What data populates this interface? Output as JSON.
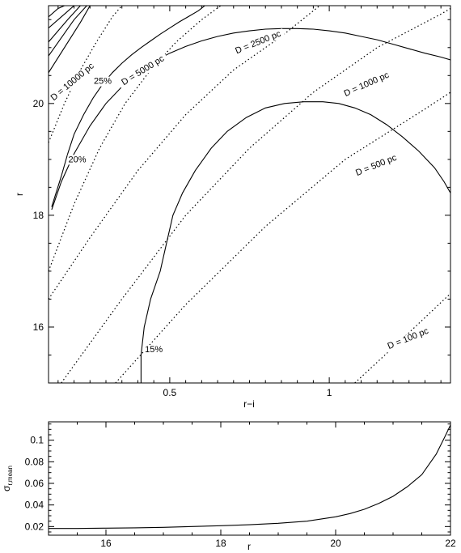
{
  "chart_data": [
    {
      "type": "line",
      "title": "",
      "xlabel": "r−i",
      "ylabel": "r",
      "xlim": [
        0.12,
        1.38
      ],
      "ylim": [
        15.0,
        21.75
      ],
      "xticks": [
        0.5,
        1.0
      ],
      "xtick_labels": [
        "0.5",
        "1"
      ],
      "yticks": [
        16,
        18,
        20
      ],
      "ytick_labels": [
        "16",
        "18",
        "20"
      ],
      "grid": false,
      "legend": "none",
      "contour_series": [
        {
          "label": "25%",
          "points": [
            [
              0.13,
              18.1
            ],
            [
              0.16,
              18.6
            ],
            [
              0.2,
              19.1
            ],
            [
              0.25,
              19.6
            ],
            [
              0.3,
              20.0
            ],
            [
              0.35,
              20.3
            ],
            [
              0.4,
              20.55
            ],
            [
              0.45,
              20.75
            ],
            [
              0.5,
              20.9
            ],
            [
              0.55,
              21.02
            ],
            [
              0.6,
              21.12
            ],
            [
              0.65,
              21.2
            ],
            [
              0.7,
              21.26
            ],
            [
              0.75,
              21.3
            ],
            [
              0.8,
              21.33
            ],
            [
              0.85,
              21.34
            ],
            [
              0.9,
              21.34
            ],
            [
              0.95,
              21.33
            ],
            [
              1.0,
              21.3
            ],
            [
              1.05,
              21.26
            ],
            [
              1.1,
              21.2
            ],
            [
              1.15,
              21.14
            ],
            [
              1.2,
              21.06
            ],
            [
              1.25,
              20.98
            ],
            [
              1.3,
              20.9
            ],
            [
              1.35,
              20.83
            ],
            [
              1.38,
              20.78
            ]
          ]
        },
        {
          "label": "20%",
          "points": [
            [
              0.13,
              18.15
            ],
            [
              0.16,
              18.7
            ],
            [
              0.18,
              19.1
            ],
            [
              0.2,
              19.45
            ],
            [
              0.23,
              19.8
            ],
            [
              0.26,
              20.1
            ],
            [
              0.29,
              20.35
            ],
            [
              0.32,
              20.55
            ],
            [
              0.35,
              20.72
            ],
            [
              0.38,
              20.87
            ],
            [
              0.41,
              21.0
            ],
            [
              0.44,
              21.12
            ],
            [
              0.47,
              21.24
            ],
            [
              0.5,
              21.35
            ],
            [
              0.53,
              21.46
            ],
            [
              0.56,
              21.56
            ],
            [
              0.59,
              21.66
            ],
            [
              0.61,
              21.75
            ]
          ]
        },
        {
          "label": "15%",
          "points": [
            [
              0.41,
              15.0
            ],
            [
              0.41,
              15.5
            ],
            [
              0.42,
              16.0
            ],
            [
              0.44,
              16.5
            ],
            [
              0.47,
              17.0
            ],
            [
              0.49,
              17.5
            ],
            [
              0.51,
              18.0
            ],
            [
              0.54,
              18.4
            ],
            [
              0.58,
              18.8
            ],
            [
              0.63,
              19.2
            ],
            [
              0.68,
              19.5
            ],
            [
              0.74,
              19.75
            ],
            [
              0.8,
              19.92
            ],
            [
              0.86,
              20.0
            ],
            [
              0.92,
              20.03
            ],
            [
              0.98,
              20.03
            ],
            [
              1.03,
              20.0
            ],
            [
              1.08,
              19.92
            ],
            [
              1.13,
              19.8
            ],
            [
              1.18,
              19.62
            ],
            [
              1.23,
              19.4
            ],
            [
              1.28,
              19.15
            ],
            [
              1.33,
              18.85
            ],
            [
              1.36,
              18.6
            ],
            [
              1.38,
              18.4
            ]
          ]
        },
        {
          "label": "",
          "points": [
            [
              0.12,
              20.55
            ],
            [
              0.22,
              21.45
            ],
            [
              0.25,
              21.75
            ]
          ]
        },
        {
          "label": "",
          "points": [
            [
              0.12,
              20.85
            ],
            [
              0.2,
              21.5
            ],
            [
              0.24,
              21.75
            ]
          ]
        },
        {
          "label": "",
          "points": [
            [
              0.12,
              21.1
            ],
            [
              0.18,
              21.5
            ],
            [
              0.22,
              21.75
            ]
          ]
        },
        {
          "label": "",
          "points": [
            [
              0.12,
              21.35
            ],
            [
              0.17,
              21.6
            ],
            [
              0.2,
              21.75
            ]
          ]
        },
        {
          "label": "",
          "points": [
            [
              0.12,
              21.55
            ],
            [
              0.15,
              21.7
            ],
            [
              0.17,
              21.75
            ]
          ]
        }
      ],
      "distance_series": [
        {
          "label": "D = 10000 pc",
          "points": [
            [
              0.12,
              19.3
            ],
            [
              0.17,
              20.0
            ],
            [
              0.22,
              20.6
            ],
            [
              0.27,
              21.1
            ],
            [
              0.32,
              21.55
            ],
            [
              0.35,
              21.75
            ]
          ]
        },
        {
          "label": "D = 5000 pc",
          "points": [
            [
              0.12,
              17.0
            ],
            [
              0.2,
              18.2
            ],
            [
              0.28,
              19.2
            ],
            [
              0.36,
              20.0
            ],
            [
              0.44,
              20.6
            ],
            [
              0.52,
              21.1
            ],
            [
              0.6,
              21.5
            ],
            [
              0.66,
              21.75
            ]
          ]
        },
        {
          "label": "D = 2500 pc",
          "points": [
            [
              0.12,
              16.5
            ],
            [
              0.25,
              17.6
            ],
            [
              0.4,
              18.8
            ],
            [
              0.55,
              19.8
            ],
            [
              0.7,
              20.6
            ],
            [
              0.85,
              21.2
            ],
            [
              0.97,
              21.75
            ]
          ]
        },
        {
          "label": "D = 1000 pc",
          "points": [
            [
              0.16,
              15.0
            ],
            [
              0.35,
              16.5
            ],
            [
              0.55,
              18.0
            ],
            [
              0.75,
              19.2
            ],
            [
              0.95,
              20.2
            ],
            [
              1.15,
              21.0
            ],
            [
              1.35,
              21.6
            ],
            [
              1.38,
              21.7
            ]
          ]
        },
        {
          "label": "D = 500 pc",
          "points": [
            [
              0.33,
              15.0
            ],
            [
              0.55,
              16.4
            ],
            [
              0.8,
              17.8
            ],
            [
              1.05,
              19.0
            ],
            [
              1.3,
              19.9
            ],
            [
              1.38,
              20.2
            ]
          ]
        },
        {
          "label": "D = 100 pc",
          "points": [
            [
              1.08,
              15.0
            ],
            [
              1.25,
              15.9
            ],
            [
              1.38,
              16.6
            ]
          ]
        }
      ],
      "labels": [
        {
          "text": "D = 10000 pc",
          "at": [
            0.2,
            20.35
          ],
          "angle": -40
        },
        {
          "text": "D = 5000 pc",
          "at": [
            0.42,
            20.55
          ],
          "angle": -32
        },
        {
          "text": "D = 2500 pc",
          "at": [
            0.78,
            21.05
          ],
          "angle": -22
        },
        {
          "text": "D = 1000 pc",
          "at": [
            1.12,
            20.3
          ],
          "angle": -24
        },
        {
          "text": "D = 500 pc",
          "at": [
            1.15,
            18.85
          ],
          "angle": -22
        },
        {
          "text": "D = 100 pc",
          "at": [
            1.25,
            15.75
          ],
          "angle": -22
        },
        {
          "text": "25%",
          "at": [
            0.29,
            20.35
          ],
          "angle": 0
        },
        {
          "text": "20%",
          "at": [
            0.21,
            18.95
          ],
          "angle": 0
        },
        {
          "text": "15%",
          "at": [
            0.45,
            15.55
          ],
          "angle": 0
        }
      ]
    },
    {
      "type": "line",
      "title": "",
      "xlabel": "r",
      "ylabel": "σr,mean",
      "xlim": [
        15,
        22
      ],
      "ylim": [
        0.012,
        0.117
      ],
      "xticks": [
        16,
        18,
        20,
        22
      ],
      "xtick_labels": [
        "16",
        "18",
        "20",
        "22"
      ],
      "yticks": [
        0.02,
        0.04,
        0.06,
        0.08,
        0.1
      ],
      "ytick_labels": [
        "0.02",
        "0.04",
        "0.06",
        "0.08",
        "0.1"
      ],
      "grid": false,
      "legend": "none",
      "series": [
        {
          "points": [
            [
              15.0,
              0.0182
            ],
            [
              15.5,
              0.0182
            ],
            [
              16.0,
              0.0185
            ],
            [
              16.5,
              0.0188
            ],
            [
              17.0,
              0.0193
            ],
            [
              17.5,
              0.02
            ],
            [
              18.0,
              0.0208
            ],
            [
              18.5,
              0.0217
            ],
            [
              19.0,
              0.023
            ],
            [
              19.5,
              0.025
            ],
            [
              20.0,
              0.029
            ],
            [
              20.25,
              0.032
            ],
            [
              20.5,
              0.036
            ],
            [
              20.75,
              0.0415
            ],
            [
              21.0,
              0.048
            ],
            [
              21.25,
              0.057
            ],
            [
              21.5,
              0.068
            ],
            [
              21.75,
              0.087
            ],
            [
              21.9,
              0.103
            ],
            [
              22.0,
              0.114
            ]
          ]
        }
      ]
    }
  ]
}
